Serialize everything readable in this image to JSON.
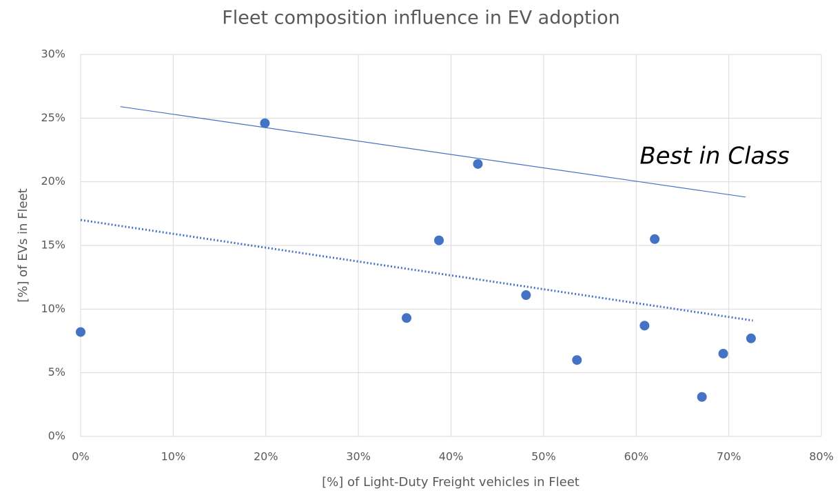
{
  "chart_data": {
    "type": "scatter",
    "title": "Fleet composition influence in EV adoption",
    "xlabel": "[%] of Light-Duty Freight  vehicles in Fleet",
    "ylabel": "[%] of EVs in Fleet",
    "annotation": "Best in Class",
    "color": "#4472c4",
    "grid": true,
    "x": [
      0,
      19.9,
      35.2,
      38.7,
      42.9,
      48.1,
      53.6,
      60.9,
      62.0,
      67.1,
      69.4,
      72.4
    ],
    "values": [
      8.2,
      24.6,
      9.3,
      15.4,
      21.4,
      11.1,
      6.0,
      8.7,
      15.5,
      3.1,
      6.5,
      7.7
    ],
    "trendlines": [
      {
        "style": "solid",
        "x": [
          4.3,
          71.8
        ],
        "values": [
          25.9,
          18.8
        ]
      },
      {
        "style": "dotted",
        "x": [
          0,
          72.6
        ],
        "values": [
          17.0,
          9.1
        ]
      }
    ],
    "xlim": [
      0,
      80
    ],
    "ylim": [
      0,
      30
    ],
    "xticks": [
      {
        "value": 0,
        "label": "0%"
      },
      {
        "value": 10,
        "label": "10%"
      },
      {
        "value": 20,
        "label": "20%"
      },
      {
        "value": 30,
        "label": "30%"
      },
      {
        "value": 40,
        "label": "40%"
      },
      {
        "value": 50,
        "label": "50%"
      },
      {
        "value": 60,
        "label": "60%"
      },
      {
        "value": 70,
        "label": "70%"
      },
      {
        "value": 80,
        "label": "80%"
      }
    ],
    "yticks": [
      {
        "value": 0,
        "label": "0%"
      },
      {
        "value": 5,
        "label": "5%"
      },
      {
        "value": 10,
        "label": "10%"
      },
      {
        "value": 15,
        "label": "15%"
      },
      {
        "value": 20,
        "label": "20%"
      },
      {
        "value": 25,
        "label": "25%"
      },
      {
        "value": 30,
        "label": "30%"
      }
    ]
  }
}
